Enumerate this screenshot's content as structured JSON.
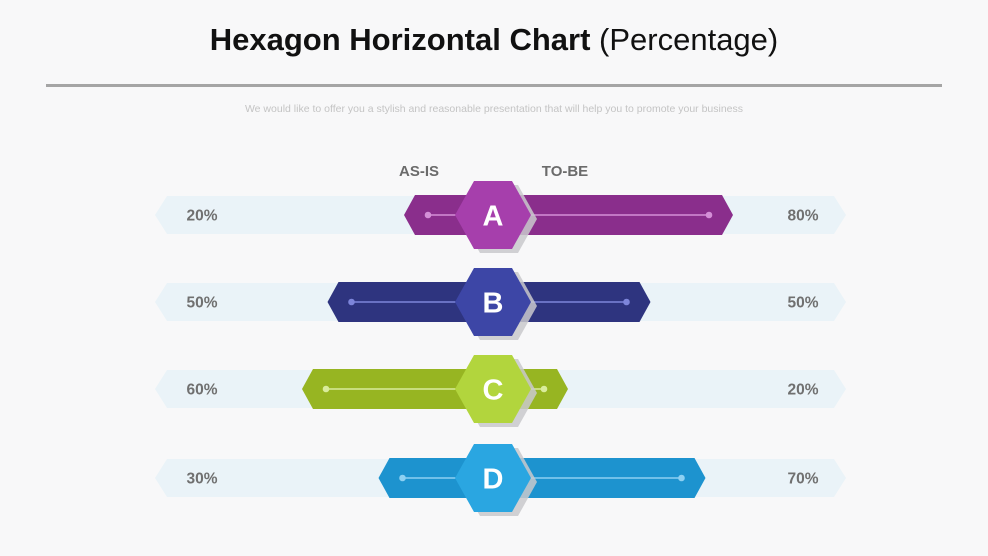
{
  "title_bold": "Hexagon Horizontal Chart",
  "title_light": "(Percentage)",
  "subtitle": "We would like to offer you a stylish and reasonable presentation that will help you to promote your business",
  "chart_data": {
    "type": "bar",
    "columns": {
      "left": "AS-IS",
      "right": "TO-BE"
    },
    "categories": [
      "A",
      "B",
      "C",
      "D"
    ],
    "series": [
      {
        "name": "AS-IS",
        "values": [
          20,
          50,
          60,
          30
        ],
        "labels": [
          "20%",
          "50%",
          "60%",
          "30%"
        ]
      },
      {
        "name": "TO-BE",
        "values": [
          80,
          50,
          20,
          70
        ],
        "labels": [
          "80%",
          "50%",
          "20%",
          "70%"
        ]
      }
    ],
    "xlim": [
      0,
      100
    ],
    "colors": [
      {
        "bar": "#8a2e8c",
        "hex": "#a63fac",
        "line": "#d48fd7"
      },
      {
        "bar": "#2e347f",
        "hex": "#3d46a6",
        "line": "#7d85da"
      },
      {
        "bar": "#97b522",
        "hex": "#b2d53d",
        "line": "#d9ec9c"
      },
      {
        "bar": "#1d93cf",
        "hex": "#2aa6e1",
        "line": "#8dd0f2"
      }
    ],
    "track_color": "#eaf3f8"
  }
}
